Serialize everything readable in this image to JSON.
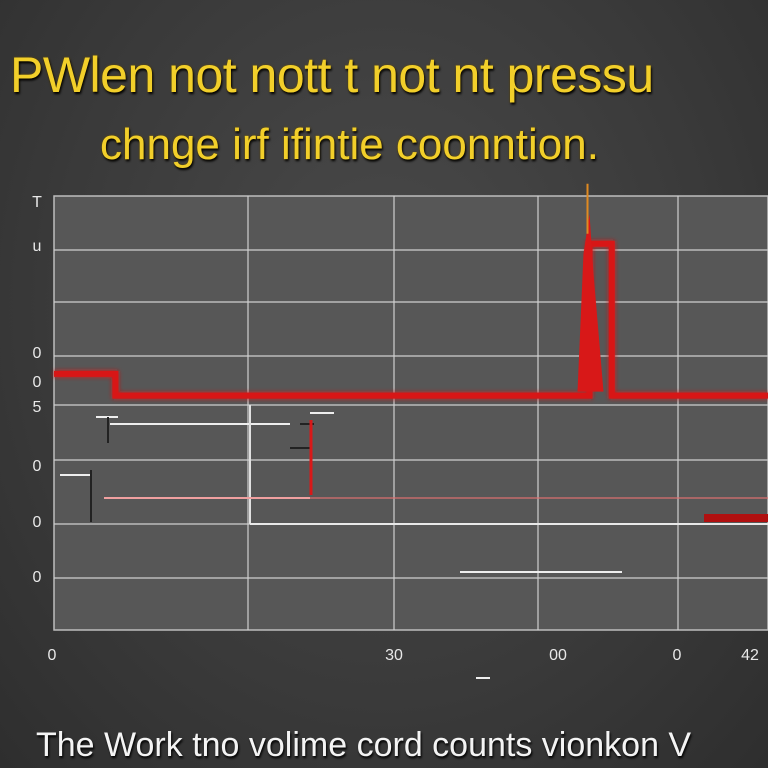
{
  "header": {
    "line1": "PWlen not nott t not nt pressu",
    "line2": "chnge irf ifintie coonntion."
  },
  "caption": "The Work tno volime cord  counts vionkon  V",
  "colors": {
    "title": "#f2cf2a",
    "grid": "#cfcfcf",
    "plot_bg": "#575757",
    "series": "#d81818"
  },
  "chart_data": {
    "type": "line",
    "title": "",
    "xlabel": "",
    "ylabel": "",
    "x_ticks": [
      "0",
      "30",
      "00",
      "0",
      "42"
    ],
    "y_ticks": [
      "T",
      "u",
      "0",
      "0",
      "5",
      "0",
      "0",
      "0"
    ],
    "grid": true,
    "series": [
      {
        "points": [
          [
            0,
            0.59
          ],
          [
            5.5,
            0.59
          ],
          [
            5.5,
            0.54
          ],
          [
            48,
            0.54
          ],
          [
            48,
            0.89
          ],
          [
            50,
            0.89
          ],
          [
            50,
            0.54
          ],
          [
            64,
            0.54
          ]
        ],
        "color": "#d81818"
      }
    ],
    "xlim": [
      0,
      64
    ],
    "ylim": [
      0,
      1
    ]
  }
}
